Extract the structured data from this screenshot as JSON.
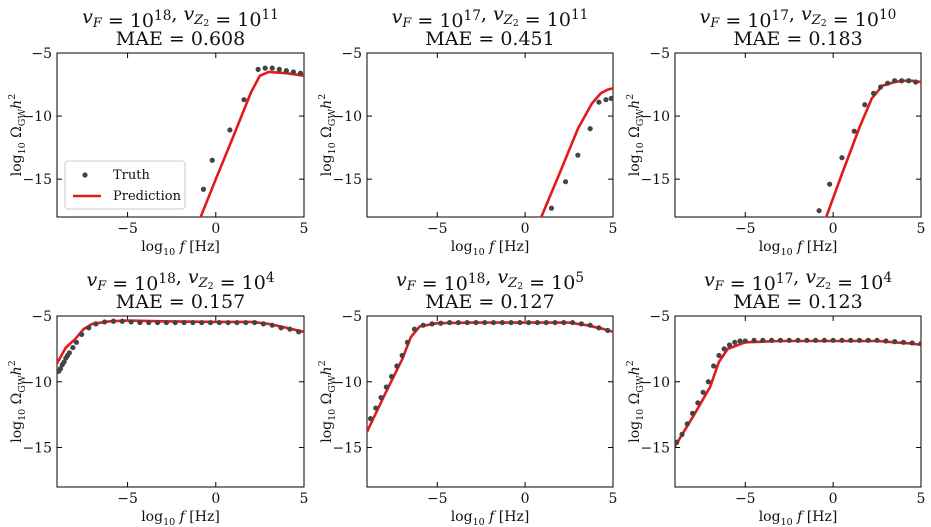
{
  "figure": {
    "colors": {
      "truth": "#444444",
      "prediction": "#e31a1c",
      "axes": "#000000"
    }
  },
  "chart_data": [
    {
      "type": "scatter",
      "title_lines": [
        "vF = 10^18,  vZ2 = 10^11",
        "MAE = 0.608"
      ],
      "xlabel": "log10 f [Hz]",
      "ylabel": "log10 ΩGW h^2",
      "xlim": [
        -9,
        5
      ],
      "ylim": [
        -18,
        -5
      ],
      "xticks": [
        "−5",
        "0",
        "5"
      ],
      "yticks": [
        "−5",
        "−10",
        "−15"
      ],
      "legend": {
        "placement": "lower-left",
        "entries": [
          "Truth",
          "Prediction"
        ]
      },
      "series": [
        {
          "name": "Truth",
          "kind": "points",
          "x": [
            -0.7,
            -0.2,
            0.8,
            1.6,
            2.4,
            2.8,
            3.2,
            3.6,
            4.0,
            4.4,
            4.8
          ],
          "y": [
            -15.8,
            -13.5,
            -11.1,
            -8.7,
            -6.3,
            -6.2,
            -6.2,
            -6.3,
            -6.4,
            -6.5,
            -6.6
          ]
        },
        {
          "name": "Prediction",
          "kind": "line",
          "x": [
            -1.0,
            0.0,
            1.0,
            2.0,
            2.5,
            3.0,
            4.0,
            5.0
          ],
          "y": [
            -18.5,
            -15.0,
            -11.6,
            -8.1,
            -6.8,
            -6.5,
            -6.6,
            -6.8
          ]
        }
      ]
    },
    {
      "type": "scatter",
      "title_lines": [
        "vF = 10^17,  vZ2 = 10^11",
        "MAE = 0.451"
      ],
      "xlabel": "log10 f [Hz]",
      "ylabel": "log10 ΩGW h^2",
      "xlim": [
        -9,
        5
      ],
      "ylim": [
        -18,
        -5
      ],
      "xticks": [
        "−5",
        "0",
        "5"
      ],
      "yticks": [
        "−5",
        "−10",
        "−15"
      ],
      "series": [
        {
          "name": "Truth",
          "kind": "points",
          "x": [
            1.5,
            2.3,
            3.0,
            3.7,
            4.2,
            4.6,
            4.9
          ],
          "y": [
            -17.3,
            -15.2,
            -13.1,
            -11.0,
            -8.9,
            -8.7,
            -8.6
          ]
        },
        {
          "name": "Prediction",
          "kind": "line",
          "x": [
            0.8,
            2.0,
            3.0,
            3.8,
            4.3,
            4.7,
            5.0
          ],
          "y": [
            -18.4,
            -14.4,
            -11.0,
            -9.0,
            -8.2,
            -7.9,
            -7.8
          ]
        }
      ]
    },
    {
      "type": "scatter",
      "title_lines": [
        "vF = 10^17,  vZ2 = 10^10",
        "MAE = 0.183"
      ],
      "xlabel": "log10 f [Hz]",
      "ylabel": "log10 ΩGW h^2",
      "xlim": [
        -9,
        5
      ],
      "ylim": [
        -18,
        -5
      ],
      "xticks": [
        "−5",
        "0",
        "5"
      ],
      "yticks": [
        "−5",
        "−10",
        "−15"
      ],
      "series": [
        {
          "name": "Truth",
          "kind": "points",
          "x": [
            -0.8,
            -0.2,
            0.5,
            1.2,
            1.8,
            2.3,
            2.7,
            3.1,
            3.5,
            3.9,
            4.3,
            4.7
          ],
          "y": [
            -17.5,
            -15.4,
            -13.3,
            -11.2,
            -9.1,
            -8.2,
            -7.7,
            -7.4,
            -7.2,
            -7.2,
            -7.2,
            -7.3
          ]
        },
        {
          "name": "Prediction",
          "kind": "line",
          "x": [
            -0.5,
            0.5,
            1.5,
            2.2,
            2.8,
            3.5,
            4.0,
            4.5,
            5.0
          ],
          "y": [
            -18.4,
            -14.6,
            -10.9,
            -8.6,
            -7.6,
            -7.3,
            -7.2,
            -7.2,
            -7.3
          ]
        }
      ]
    },
    {
      "type": "scatter",
      "title_lines": [
        "vF = 10^18,  vZ2 = 10^4",
        "MAE = 0.157"
      ],
      "xlabel": "log10 f [Hz]",
      "ylabel": "log10 ΩGW h^2",
      "xlim": [
        -9,
        5
      ],
      "ylim": [
        -18,
        -5
      ],
      "xticks": [
        "−5",
        "0",
        "5"
      ],
      "yticks": [
        "−5",
        "−10",
        "−15"
      ],
      "series": [
        {
          "name": "Truth",
          "kind": "points",
          "x": [
            -8.9,
            -8.8,
            -8.7,
            -8.6,
            -8.5,
            -8.4,
            -8.3,
            -8.1,
            -7.9,
            -7.6,
            -7.2,
            -6.8,
            -6.3,
            -5.8,
            -5.3,
            -4.8,
            -4.3,
            -3.8,
            -3.3,
            -2.8,
            -2.3,
            -1.8,
            -1.3,
            -0.8,
            -0.3,
            0.2,
            0.7,
            1.2,
            1.7,
            2.2,
            2.7,
            3.2,
            3.7,
            4.2,
            4.7
          ],
          "y": [
            -9.2,
            -9.0,
            -8.7,
            -8.5,
            -8.2,
            -8.0,
            -7.8,
            -7.4,
            -7.0,
            -6.4,
            -5.9,
            -5.6,
            -5.45,
            -5.4,
            -5.4,
            -5.45,
            -5.5,
            -5.5,
            -5.5,
            -5.5,
            -5.5,
            -5.5,
            -5.5,
            -5.5,
            -5.5,
            -5.5,
            -5.5,
            -5.5,
            -5.5,
            -5.5,
            -5.6,
            -5.7,
            -5.9,
            -6.0,
            -6.2
          ]
        },
        {
          "name": "Prediction",
          "kind": "line",
          "x": [
            -9.0,
            -8.5,
            -8.0,
            -7.5,
            -7.0,
            -6.0,
            -5.0,
            -3.0,
            0.0,
            2.0,
            3.0,
            4.0,
            5.0
          ],
          "y": [
            -8.6,
            -7.4,
            -6.8,
            -6.0,
            -5.6,
            -5.4,
            -5.35,
            -5.4,
            -5.45,
            -5.45,
            -5.6,
            -5.9,
            -6.2
          ]
        }
      ]
    },
    {
      "type": "scatter",
      "title_lines": [
        "vF = 10^18,  vZ2 = 10^5",
        "MAE = 0.127"
      ],
      "xlabel": "log10 f [Hz]",
      "ylabel": "log10 ΩGW h^2",
      "xlim": [
        -9,
        5
      ],
      "ylim": [
        -18,
        -5
      ],
      "xticks": [
        "−5",
        "0",
        "5"
      ],
      "yticks": [
        "−5",
        "−10",
        "−15"
      ],
      "series": [
        {
          "name": "Truth",
          "kind": "points",
          "x": [
            -8.8,
            -8.5,
            -8.2,
            -7.9,
            -7.6,
            -7.3,
            -7.0,
            -6.7,
            -6.3,
            -5.8,
            -5.3,
            -4.8,
            -4.3,
            -3.8,
            -3.3,
            -2.8,
            -2.3,
            -1.8,
            -1.3,
            -0.8,
            -0.3,
            0.2,
            0.7,
            1.2,
            1.7,
            2.2,
            2.7,
            3.2,
            3.7,
            4.2,
            4.7
          ],
          "y": [
            -12.8,
            -12.0,
            -11.2,
            -10.4,
            -9.6,
            -8.8,
            -8.0,
            -7.0,
            -6.0,
            -5.7,
            -5.6,
            -5.55,
            -5.5,
            -5.5,
            -5.5,
            -5.5,
            -5.5,
            -5.5,
            -5.5,
            -5.5,
            -5.5,
            -5.5,
            -5.5,
            -5.5,
            -5.5,
            -5.5,
            -5.5,
            -5.6,
            -5.7,
            -5.9,
            -6.1
          ]
        },
        {
          "name": "Prediction",
          "kind": "line",
          "x": [
            -9.0,
            -8.0,
            -7.0,
            -6.5,
            -6.0,
            -5.0,
            -3.0,
            0.0,
            2.5,
            3.5,
            4.5,
            5.0
          ],
          "y": [
            -13.8,
            -11.0,
            -8.3,
            -6.6,
            -5.8,
            -5.55,
            -5.5,
            -5.5,
            -5.5,
            -5.7,
            -6.0,
            -6.2
          ]
        }
      ]
    },
    {
      "type": "scatter",
      "title_lines": [
        "vF = 10^17,  vZ2 = 10^4",
        "MAE = 0.123"
      ],
      "xlabel": "log10 f [Hz]",
      "ylabel": "log10 ΩGW h^2",
      "xlim": [
        -9,
        5
      ],
      "ylim": [
        -18,
        -5
      ],
      "xticks": [
        "−5",
        "0",
        "5"
      ],
      "yticks": [
        "−5",
        "−10",
        "−15"
      ],
      "series": [
        {
          "name": "Truth",
          "kind": "points",
          "x": [
            -8.9,
            -8.6,
            -8.3,
            -8.0,
            -7.7,
            -7.4,
            -7.1,
            -6.8,
            -6.5,
            -6.2,
            -5.9,
            -5.6,
            -5.3,
            -5.0,
            -4.5,
            -4.0,
            -3.5,
            -3.0,
            -2.5,
            -2.0,
            -1.5,
            -1.0,
            -0.5,
            0.0,
            0.5,
            1.0,
            1.5,
            2.0,
            2.5,
            3.0,
            3.5,
            4.0,
            4.5,
            5.0
          ],
          "y": [
            -14.6,
            -14.0,
            -13.2,
            -12.4,
            -11.6,
            -10.8,
            -10.0,
            -8.8,
            -8.0,
            -7.5,
            -7.2,
            -7.0,
            -6.9,
            -6.9,
            -6.85,
            -6.85,
            -6.85,
            -6.85,
            -6.85,
            -6.85,
            -6.85,
            -6.85,
            -6.85,
            -6.85,
            -6.85,
            -6.85,
            -6.85,
            -6.85,
            -6.85,
            -6.9,
            -6.95,
            -7.0,
            -7.05,
            -7.1
          ]
        },
        {
          "name": "Prediction",
          "kind": "line",
          "x": [
            -9.0,
            -8.0,
            -7.0,
            -6.5,
            -6.0,
            -5.0,
            -3.0,
            0.0,
            2.5,
            3.5,
            4.5,
            5.0
          ],
          "y": [
            -14.9,
            -12.7,
            -10.4,
            -8.5,
            -7.5,
            -7.0,
            -6.9,
            -6.9,
            -6.9,
            -7.0,
            -7.1,
            -7.2
          ]
        }
      ]
    }
  ]
}
